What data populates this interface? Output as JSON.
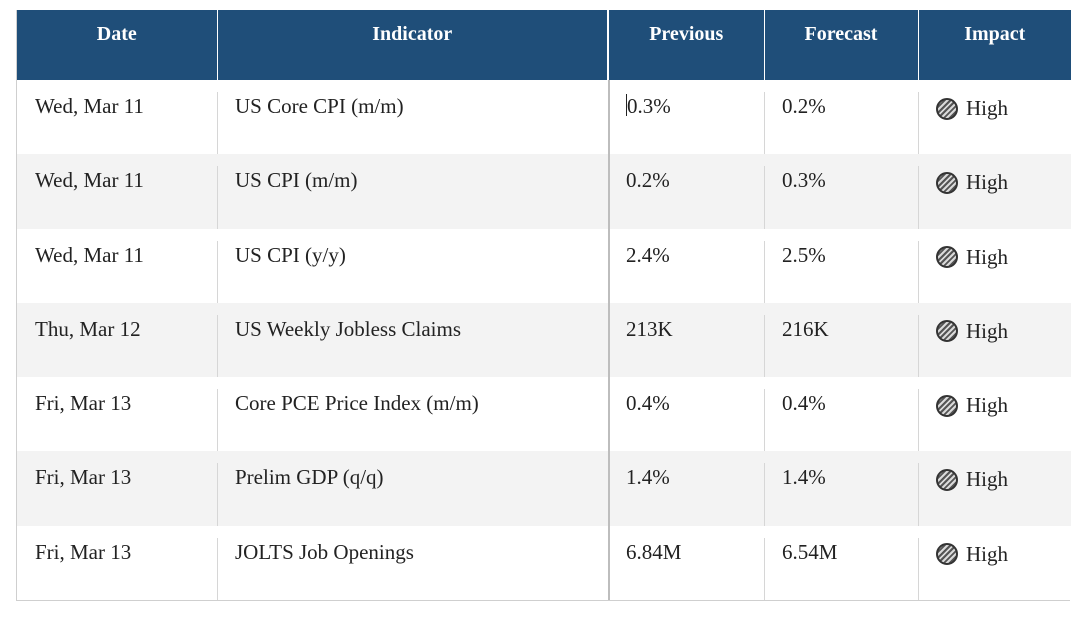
{
  "table": {
    "headers": {
      "date": "Date",
      "indicator": "Indicator",
      "previous": "Previous",
      "forecast": "Forecast",
      "impact": "Impact"
    },
    "rows": [
      {
        "date": "Wed, Mar 11",
        "indicator": "US Core CPI (m/m)",
        "previous": "0.3%",
        "forecast": "0.2%",
        "impact": "High"
      },
      {
        "date": "Wed, Mar 11",
        "indicator": "US CPI (m/m)",
        "previous": "0.2%",
        "forecast": "0.3%",
        "impact": "High"
      },
      {
        "date": "Wed, Mar 11",
        "indicator": "US CPI (y/y)",
        "previous": "2.4%",
        "forecast": "2.5%",
        "impact": "High"
      },
      {
        "date": "Thu, Mar 12",
        "indicator": "US Weekly Jobless Claims",
        "previous": "213K",
        "forecast": "216K",
        "impact": "High"
      },
      {
        "date": "Fri, Mar 13",
        "indicator": "Core PCE Price Index (m/m)",
        "previous": "0.4%",
        "forecast": "0.4%",
        "impact": "High"
      },
      {
        "date": "Fri, Mar 13",
        "indicator": "Prelim GDP (q/q)",
        "previous": "1.4%",
        "forecast": "1.4%",
        "impact": "High"
      },
      {
        "date": "Fri, Mar 13",
        "indicator": "JOLTS Job Openings",
        "previous": "6.84M",
        "forecast": "6.54M",
        "impact": "High"
      }
    ]
  },
  "colors": {
    "header_bg": "#1f4e79",
    "header_text": "#ffffff",
    "row_alt_bg": "#f3f3f3"
  },
  "icons": {
    "impact": "hatched-circle-icon"
  }
}
